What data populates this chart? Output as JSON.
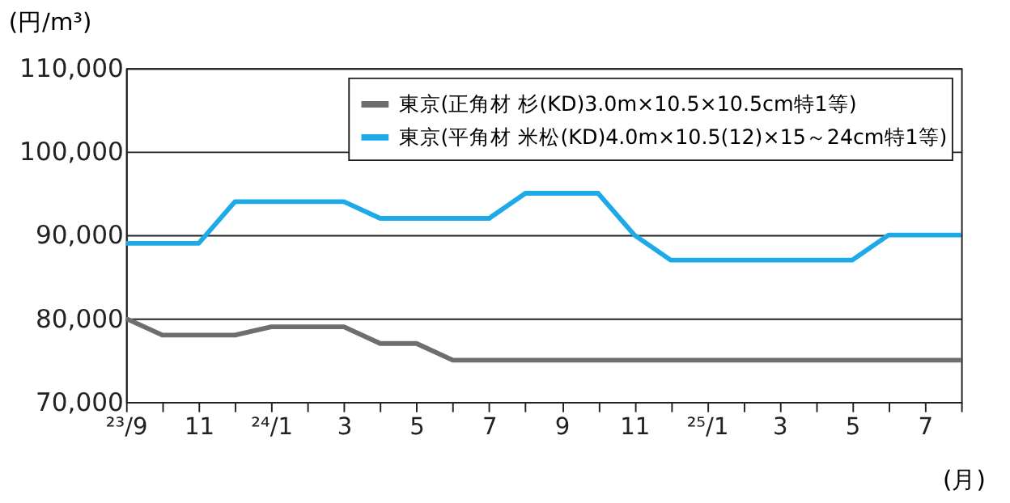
{
  "chart_data": {
    "type": "line",
    "ylabel": "(円/m³)",
    "xlabel": "(月)",
    "categories": [
      "²³/9",
      null,
      "11",
      null,
      "²⁴/1",
      null,
      "3",
      null,
      "5",
      null,
      "7",
      null,
      "9",
      null,
      "11",
      null,
      "²⁵/1",
      null,
      "3",
      null,
      "5",
      null,
      "7",
      null
    ],
    "series": [
      {
        "name": "東京(正角材 杉(KD)3.0m×10.5×10.5cm特1等)",
        "color": "#6e6e6e",
        "values": [
          80000,
          78000,
          78000,
          78000,
          79000,
          79000,
          79000,
          77000,
          77000,
          75000,
          75000,
          75000,
          75000,
          75000,
          75000,
          75000,
          75000,
          75000,
          75000,
          75000,
          75000,
          75000,
          75000,
          75000
        ]
      },
      {
        "name": "東京(平角材 米松(KD)4.0m×10.5(12)×15～24cm特1等)",
        "color": "#1eaae6",
        "values": [
          89000,
          89000,
          89000,
          94000,
          94000,
          94000,
          94000,
          92000,
          92000,
          92000,
          92000,
          95000,
          95000,
          95000,
          90000,
          87000,
          87000,
          87000,
          87000,
          87000,
          87000,
          90000,
          90000,
          90000
        ]
      }
    ],
    "ylim": [
      70000,
      110000
    ],
    "yticks": [
      {
        "value": 70000,
        "label": "70,000"
      },
      {
        "value": 80000,
        "label": "80,000"
      },
      {
        "value": 90000,
        "label": "90,000"
      },
      {
        "value": 100000,
        "label": "100,000"
      },
      {
        "value": 110000,
        "label": "110,000"
      }
    ],
    "grid": "y",
    "legend": "top right",
    "marker": "none",
    "line_style": "solid"
  }
}
